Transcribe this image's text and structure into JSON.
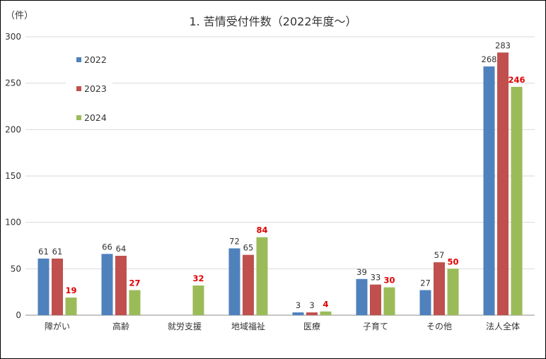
{
  "chart_data": {
    "type": "bar",
    "title": "1. 苦情受付件数（2022年度～）",
    "ylabel": "（件）",
    "xlabel": "",
    "ylim": [
      0,
      300
    ],
    "yticks": [
      0,
      50,
      100,
      150,
      200,
      250,
      300
    ],
    "grid": true,
    "legend_position": "top-left",
    "categories": [
      "障がい",
      "高齢",
      "就労支援",
      "地域福祉",
      "医療",
      "子育て",
      "その他",
      "法人全体"
    ],
    "series": [
      {
        "name": "2022",
        "color": "#4f81bd",
        "values": [
          61,
          66,
          null,
          72,
          3,
          39,
          27,
          268
        ],
        "label_color": "#333333",
        "label_bold": false
      },
      {
        "name": "2023",
        "color": "#c0504d",
        "values": [
          61,
          64,
          null,
          65,
          3,
          33,
          57,
          283
        ],
        "label_color": "#333333",
        "label_bold": false
      },
      {
        "name": "2024",
        "color": "#9bbb59",
        "values": [
          19,
          27,
          32,
          84,
          4,
          30,
          50,
          246
        ],
        "label_color": "#e00000",
        "label_bold": true
      }
    ]
  }
}
